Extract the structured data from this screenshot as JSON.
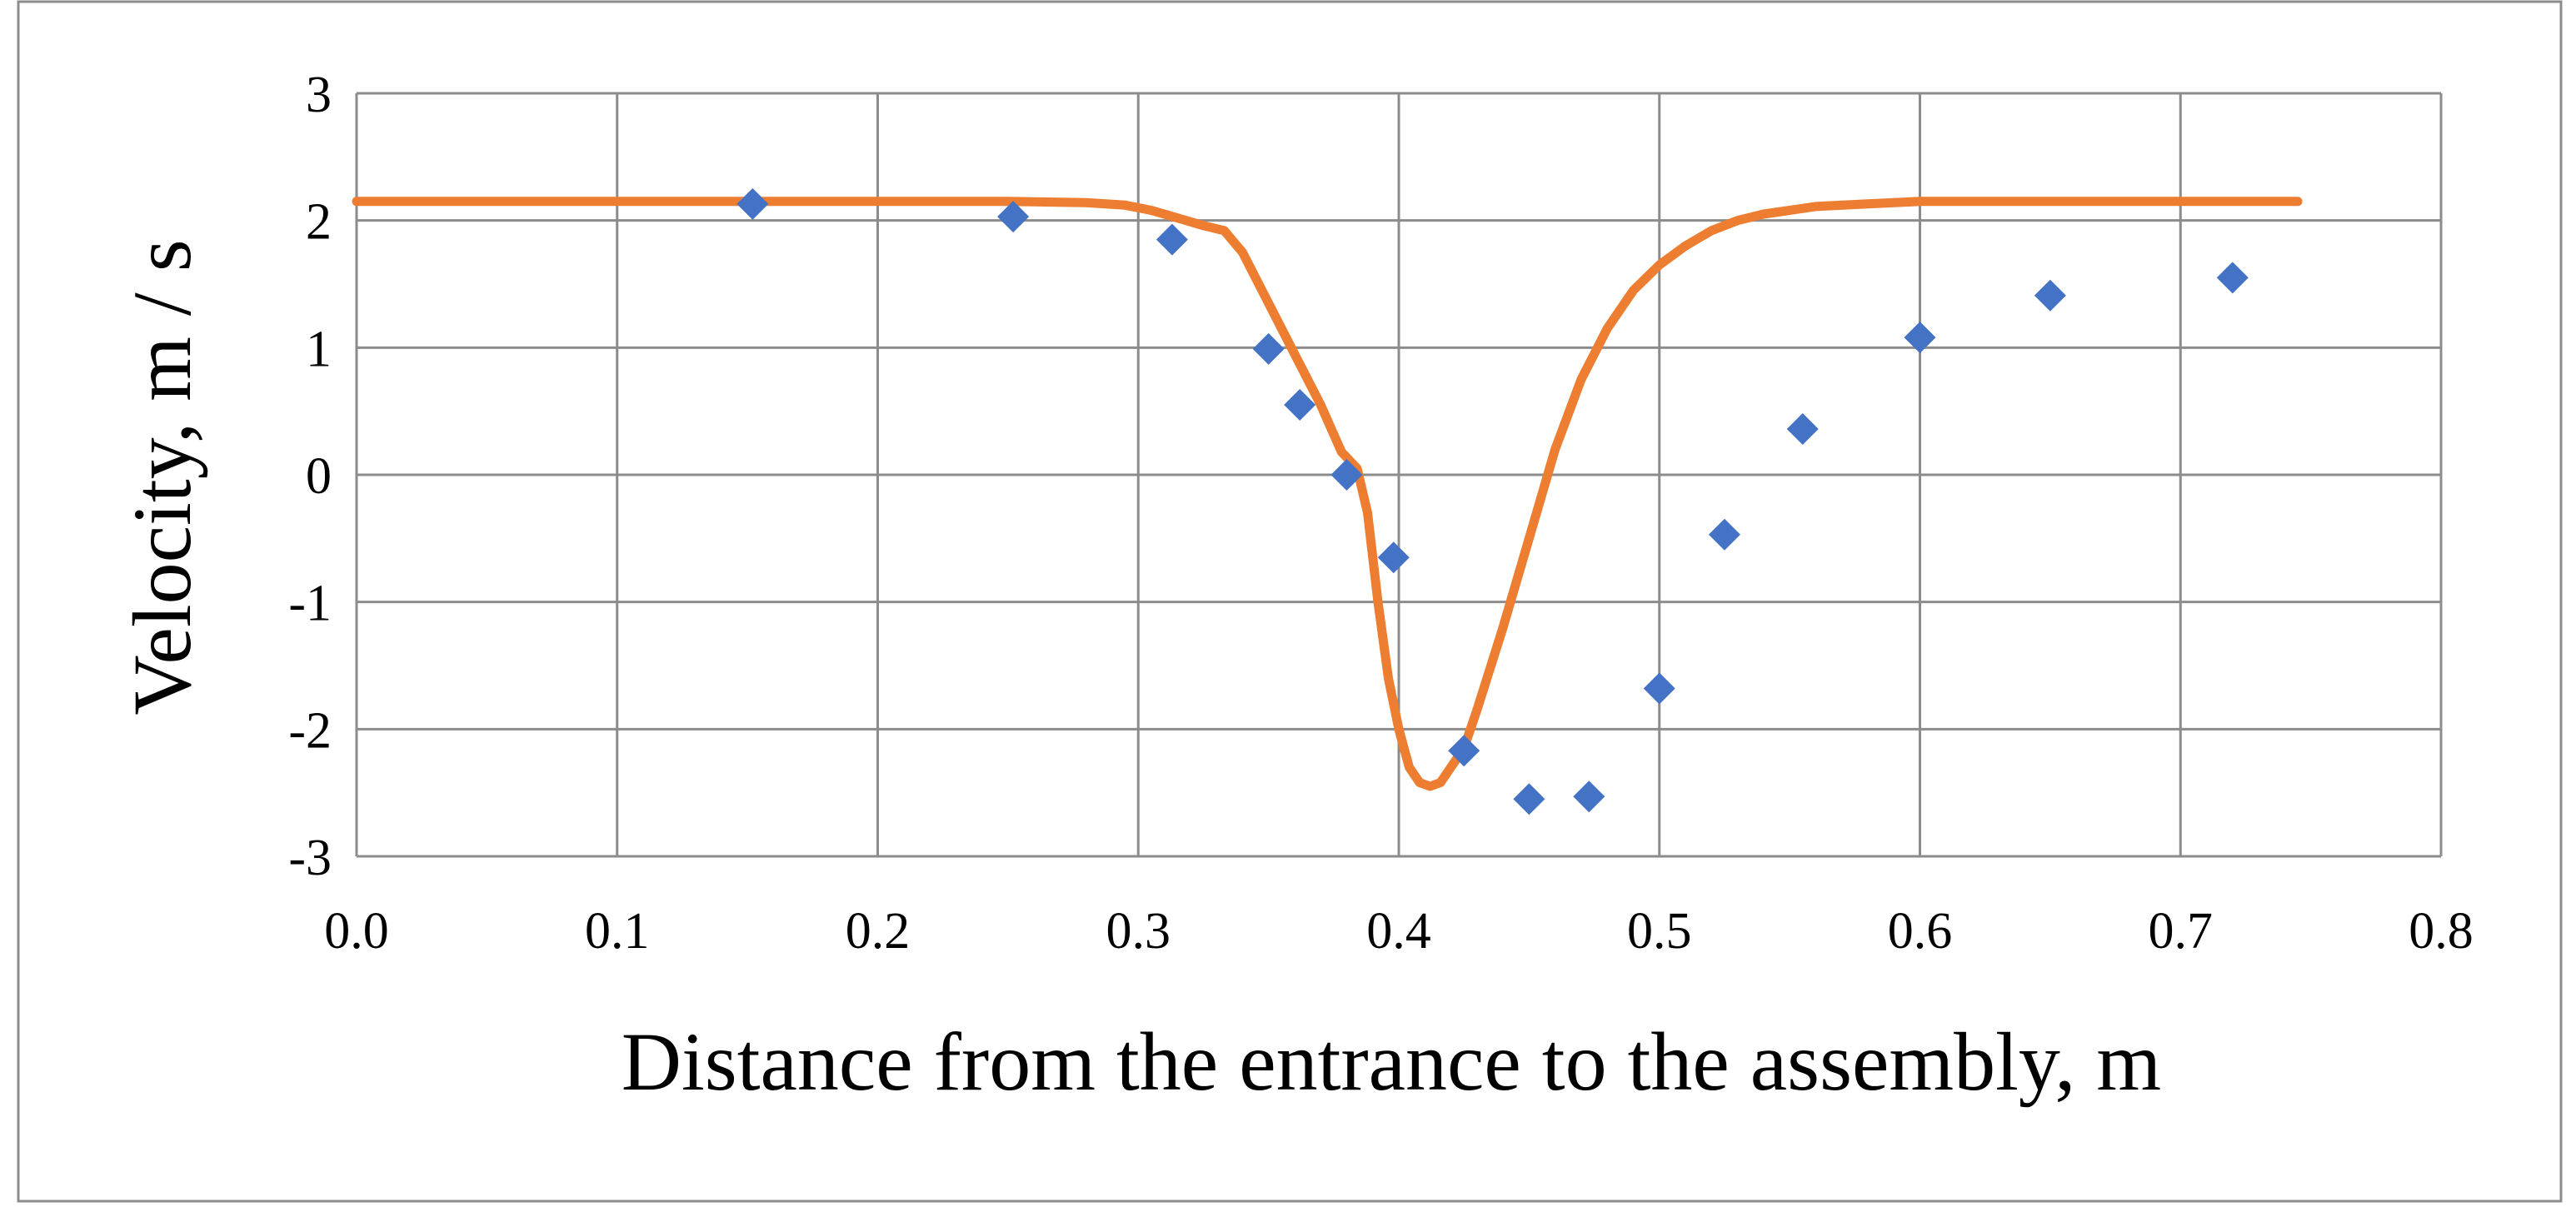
{
  "chart_data": {
    "type": "scatter",
    "title": "",
    "xlabel": "Distance from the entrance to the assembly, m",
    "ylabel": "Velocity, m / s",
    "xlim": [
      0,
      0.8
    ],
    "ylim": [
      -3,
      3
    ],
    "x_ticks": [
      0,
      0.1,
      0.2,
      0.3,
      0.4,
      0.5,
      0.6,
      0.7,
      0.8
    ],
    "x_tick_labels": [
      "0.0",
      "0.1",
      "0.2",
      "0.3",
      "0.4",
      "0.5",
      "0.6",
      "0.7",
      "0.8"
    ],
    "y_ticks": [
      3,
      2,
      1,
      0,
      -1,
      -2,
      -3
    ],
    "y_tick_labels": [
      "3",
      "2",
      "1",
      "0",
      "-1",
      "-2",
      "-3"
    ],
    "grid": true,
    "legend": "none",
    "series": [
      {
        "kind": "line",
        "color": "#ED7D31",
        "x": [
          0.0,
          0.1,
          0.2,
          0.25,
          0.28,
          0.295,
          0.305,
          0.315,
          0.325,
          0.333,
          0.34,
          0.35,
          0.36,
          0.37,
          0.378,
          0.384,
          0.388,
          0.392,
          0.396,
          0.4,
          0.404,
          0.408,
          0.412,
          0.416,
          0.42,
          0.425,
          0.43,
          0.44,
          0.45,
          0.46,
          0.47,
          0.48,
          0.49,
          0.5,
          0.51,
          0.52,
          0.53,
          0.54,
          0.55,
          0.56,
          0.58,
          0.6,
          0.65,
          0.7,
          0.745
        ],
        "y": [
          2.15,
          2.15,
          2.15,
          2.15,
          2.14,
          2.12,
          2.08,
          2.02,
          1.96,
          1.92,
          1.75,
          1.35,
          0.95,
          0.55,
          0.18,
          0.05,
          -0.3,
          -1.0,
          -1.6,
          -2.0,
          -2.3,
          -2.42,
          -2.45,
          -2.42,
          -2.3,
          -2.15,
          -1.85,
          -1.2,
          -0.5,
          0.2,
          0.75,
          1.15,
          1.45,
          1.65,
          1.8,
          1.92,
          2.0,
          2.05,
          2.08,
          2.11,
          2.13,
          2.15,
          2.15,
          2.15,
          2.15
        ]
      },
      {
        "kind": "scatter",
        "marker": "diamond",
        "color": "#4472C4",
        "x": [
          0.152,
          0.252,
          0.313,
          0.35,
          0.362,
          0.38,
          0.398,
          0.425,
          0.45,
          0.473,
          0.5,
          0.525,
          0.555,
          0.6,
          0.65,
          0.72
        ],
        "y": [
          2.13,
          2.03,
          1.85,
          0.99,
          0.55,
          0.0,
          -0.65,
          -2.17,
          -2.55,
          -2.53,
          -1.68,
          -0.47,
          0.36,
          1.08,
          1.41,
          1.55
        ]
      }
    ]
  }
}
